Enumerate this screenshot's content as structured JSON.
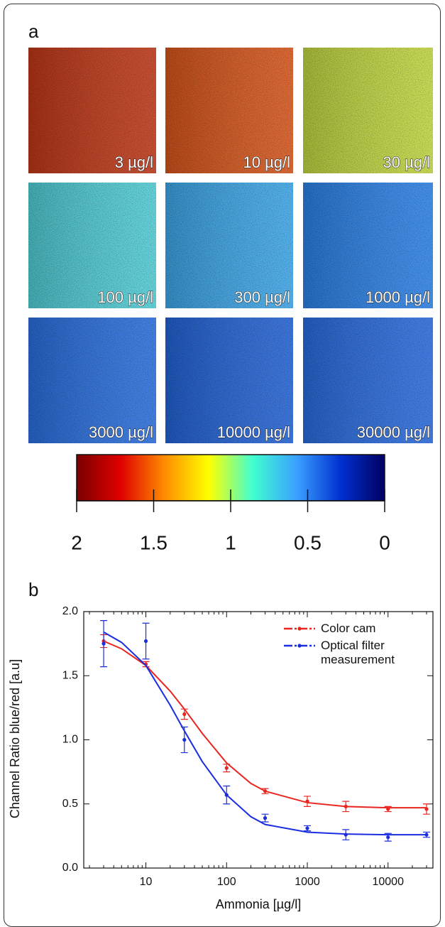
{
  "chart_data": [
    {
      "type": "image-grid",
      "label": "a",
      "images": [
        {
          "label": "3 µg/l",
          "color": "#c03818"
        },
        {
          "label": "10 µg/l",
          "color": "#d8561c"
        },
        {
          "label": "30 µg/l",
          "color": "#c4d842"
        },
        {
          "label": "100 µg/l",
          "color": "#52cfd8"
        },
        {
          "label": "300 µg/l",
          "color": "#3ea8ea"
        },
        {
          "label": "1000 µg/l",
          "color": "#2c82e8"
        },
        {
          "label": "3000 µg/l",
          "color": "#2a70e0"
        },
        {
          "label": "10000 µg/l",
          "color": "#2464d8"
        },
        {
          "label": "30000 µg/l",
          "color": "#2a6ce0"
        }
      ],
      "colorbar": {
        "colormap": [
          "#7a0000",
          "#e00000",
          "#ff8c00",
          "#ffff00",
          "#40ffd0",
          "#3aa0ff",
          "#0030d0",
          "#000060"
        ],
        "lim": [
          2,
          0
        ],
        "ticks": [
          2,
          1.5,
          1,
          0.5,
          0
        ]
      }
    },
    {
      "type": "line",
      "label": "b",
      "x_label": "Ammonia [µg/l]",
      "y_label": "Channel Ratio blue/red [a.u]",
      "xscale": "log",
      "xlim": [
        1.7,
        36000
      ],
      "xticks": [
        10,
        100,
        1000,
        10000
      ],
      "ylim": [
        0,
        2
      ],
      "yticks": [
        {
          "value": 0,
          "label": "0.0"
        },
        {
          "value": 0.5,
          "label": "0.5"
        },
        {
          "value": 1,
          "label": "1.0"
        },
        {
          "value": 1.5,
          "label": "1.5"
        },
        {
          "value": 2,
          "label": "2.0"
        }
      ],
      "legend": "upper right",
      "series": [
        {
          "name": "Color cam",
          "color": "#e8261f",
          "x": [
            3,
            10,
            30,
            100,
            300,
            1000,
            3000,
            10000,
            30000
          ],
          "values": [
            1.77,
            1.59,
            1.2,
            0.78,
            0.6,
            0.52,
            0.48,
            0.46,
            0.46
          ],
          "errors": [
            0.05,
            0.02,
            0.04,
            0.03,
            0.02,
            0.04,
            0.04,
            0.02,
            0.04
          ],
          "fit": {
            "x": [
              3,
              5,
              10,
              20,
              30,
              50,
              100,
              200,
              300,
              1000,
              3000,
              10000,
              30000
            ],
            "values": [
              1.77,
              1.71,
              1.58,
              1.38,
              1.24,
              1.05,
              0.82,
              0.66,
              0.6,
              0.51,
              0.48,
              0.47,
              0.47
            ]
          }
        },
        {
          "name": "Optical filter measurement",
          "color": "#1a2ee0",
          "x": [
            3,
            10,
            30,
            100,
            300,
            1000,
            3000,
            10000,
            30000
          ],
          "values": [
            1.75,
            1.77,
            1.0,
            0.57,
            0.39,
            0.31,
            0.26,
            0.24,
            0.26
          ],
          "errors": [
            0.18,
            0.14,
            0.1,
            0.07,
            0.03,
            0.02,
            0.04,
            0.03,
            0.02
          ],
          "fit": {
            "x": [
              3,
              5,
              10,
              20,
              30,
              50,
              100,
              200,
              300,
              1000,
              3000,
              10000,
              30000
            ],
            "values": [
              1.84,
              1.76,
              1.58,
              1.27,
              1.07,
              0.83,
              0.57,
              0.4,
              0.34,
              0.28,
              0.265,
              0.26,
              0.26
            ]
          }
        }
      ]
    }
  ]
}
